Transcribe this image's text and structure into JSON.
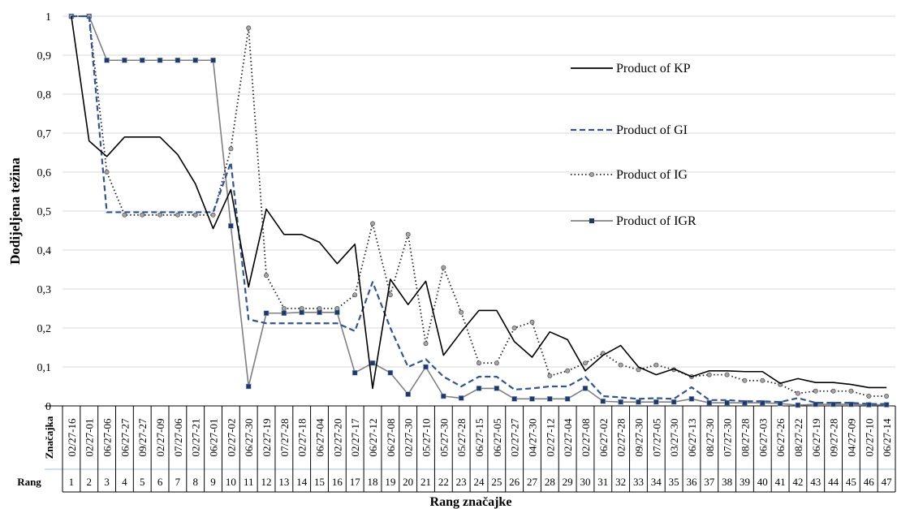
{
  "chart_data": {
    "type": "line",
    "ylabel": "Dodijeljena težina",
    "xlabel": "Rang značajke",
    "ylim": [
      0,
      1
    ],
    "yticks": [
      "0",
      "0,1",
      "0,2",
      "0,3",
      "0,4",
      "0,5",
      "0,6",
      "0,7",
      "0,8",
      "0,9",
      "1"
    ],
    "grid": true,
    "legend_position": "top-right",
    "table": {
      "row1_header": "Značajka",
      "row2_header": "Rang",
      "features": [
        "02/27-16",
        "02/27-01",
        "06/27-06",
        "06/27-27",
        "09/27-27",
        "02/27-09",
        "07/27-06",
        "02/27-21",
        "06/27-01",
        "02/27-02",
        "06/27-30",
        "02/27-19",
        "07/27-28",
        "02/27-18",
        "06/27-04",
        "02/27-20",
        "02/27-17",
        "06/27-12",
        "06/27-08",
        "02/27-30",
        "05/27-10",
        "05/27-30",
        "05/27-28",
        "06/27-15",
        "06/27-05",
        "02/27-27",
        "04/27-30",
        "02/27-12",
        "02/27-04",
        "02/27-08",
        "06/27-02",
        "02/27-28",
        "09/27-30",
        "07/27-05",
        "03/27-30",
        "06/27-13",
        "08/27-30",
        "07/27-30",
        "08/27-28",
        "06/27-03",
        "06/27-26",
        "08/27-22",
        "06/27-19",
        "09/27-28",
        "04/27-09",
        "02/27-10",
        "06/27-14"
      ],
      "ranks": [
        "1",
        "2",
        "3",
        "4",
        "5",
        "6",
        "7",
        "8",
        "9",
        "10",
        "11",
        "12",
        "13",
        "14",
        "15",
        "16",
        "17",
        "18",
        "19",
        "20",
        "21",
        "22",
        "23",
        "24",
        "25",
        "26",
        "27",
        "28",
        "29",
        "30",
        "31",
        "32",
        "33",
        "34",
        "35",
        "36",
        "37",
        "38",
        "39",
        "40",
        "41",
        "42",
        "43",
        "44",
        "45",
        "46",
        "47"
      ]
    },
    "series": [
      {
        "name": "Product of KP",
        "color": "#000000",
        "style": "solid",
        "values": [
          1,
          0.68,
          0.64,
          0.69,
          0.69,
          0.69,
          0.645,
          0.57,
          0.455,
          0.555,
          0.305,
          0.505,
          0.44,
          0.44,
          0.42,
          0.365,
          0.415,
          0.045,
          0.325,
          0.26,
          0.32,
          0.13,
          0.19,
          0.245,
          0.245,
          0.165,
          0.125,
          0.19,
          0.17,
          0.09,
          0.13,
          0.155,
          0.1,
          0.08,
          0.095,
          0.075,
          0.09,
          0.09,
          0.088,
          0.088,
          0.058,
          0.07,
          0.06,
          0.06,
          0.055,
          0.047,
          0.047
        ]
      },
      {
        "name": "Product of GI",
        "color": "#2f5597",
        "style": "dashed",
        "values": [
          1,
          1,
          0.497,
          0.497,
          0.497,
          0.497,
          0.497,
          0.497,
          0.497,
          0.625,
          0.222,
          0.212,
          0.212,
          0.212,
          0.212,
          0.212,
          0.192,
          0.318,
          0.2,
          0.1,
          0.12,
          0.075,
          0.05,
          0.075,
          0.075,
          0.042,
          0.045,
          0.05,
          0.05,
          0.075,
          0.025,
          0.022,
          0.018,
          0.02,
          0.018,
          0.048,
          0.015,
          0.015,
          0.012,
          0.012,
          0.01,
          0.02,
          0.008,
          0.008,
          0.008,
          0.005,
          0.005
        ]
      },
      {
        "name": "Product of IG",
        "color": "#222222",
        "style": "dotted",
        "values": [
          1,
          1,
          0.6,
          0.49,
          0.49,
          0.49,
          0.49,
          0.49,
          0.49,
          0.66,
          0.97,
          0.335,
          0.25,
          0.25,
          0.25,
          0.25,
          0.285,
          0.468,
          0.285,
          0.44,
          0.16,
          0.355,
          0.24,
          0.11,
          0.11,
          0.2,
          0.215,
          0.077,
          0.09,
          0.11,
          0.135,
          0.105,
          0.093,
          0.105,
          0.093,
          0.075,
          0.08,
          0.08,
          0.065,
          0.065,
          0.055,
          0.032,
          0.038,
          0.038,
          0.038,
          0.025,
          0.025
        ]
      },
      {
        "name": "Product of IGR",
        "color": "#7f7f7f",
        "marker_color": "#1f3864",
        "style": "solid-square",
        "values": [
          1,
          1,
          0.887,
          0.887,
          0.887,
          0.887,
          0.887,
          0.887,
          0.887,
          0.462,
          0.05,
          0.238,
          0.238,
          0.24,
          0.24,
          0.24,
          0.085,
          0.11,
          0.085,
          0.03,
          0.1,
          0.025,
          0.02,
          0.045,
          0.045,
          0.018,
          0.018,
          0.018,
          0.018,
          0.045,
          0.012,
          0.01,
          0.01,
          0.01,
          0.01,
          0.018,
          0.008,
          0.008,
          0.008,
          0.008,
          0.006,
          0.002,
          0.004,
          0.004,
          0.004,
          0.003,
          0.003
        ]
      }
    ]
  }
}
